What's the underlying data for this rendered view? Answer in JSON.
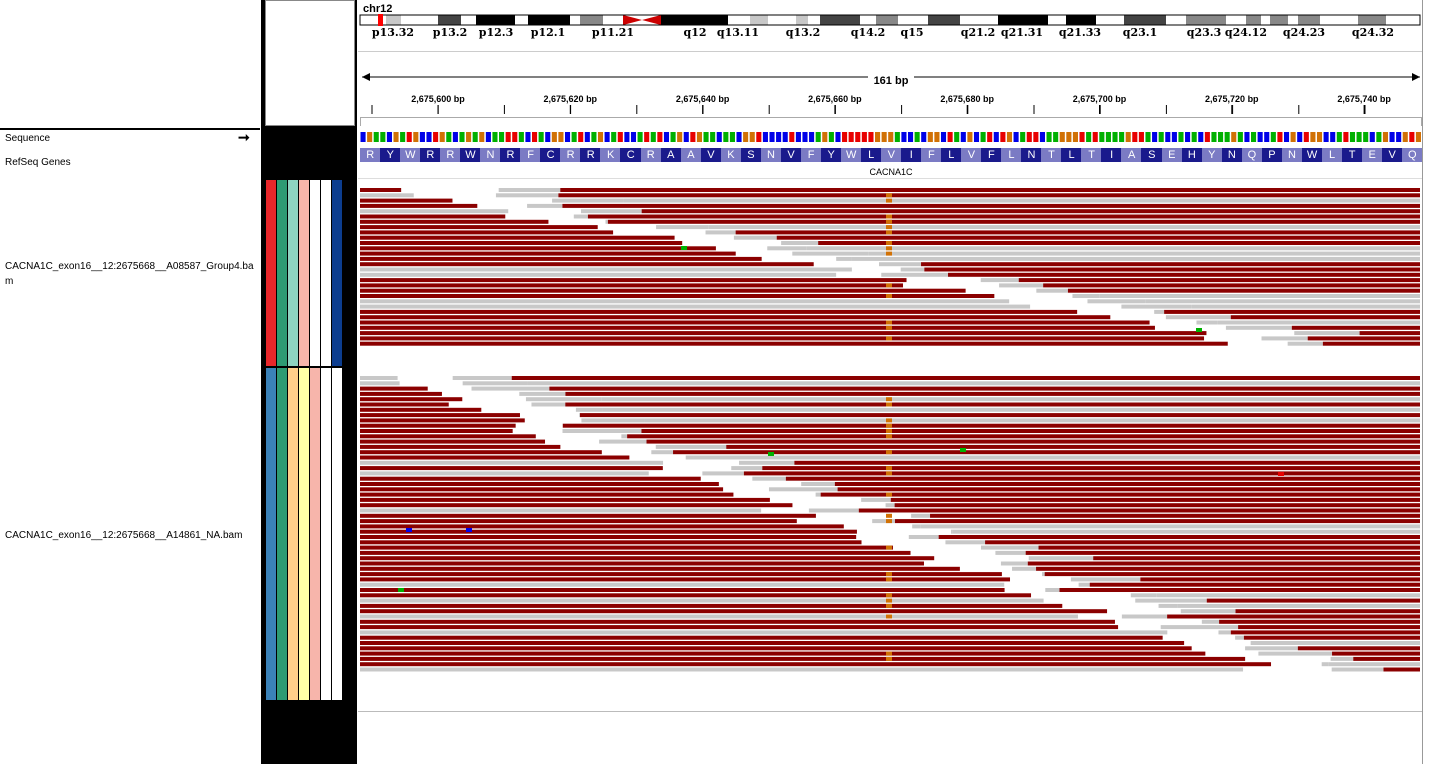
{
  "chromosome": "chr12",
  "ideogram": {
    "bands": [
      "p13.32",
      "p13.2",
      "p12.3",
      "p12.1",
      "p11.21",
      "q12",
      "q13.11",
      "q13.2",
      "q14.2",
      "q15",
      "q21.2",
      "q21.31",
      "q21.33",
      "q23.1",
      "q23.3",
      "q24.12",
      "q24.23",
      "q24.32"
    ]
  },
  "ruler": {
    "span": "161 bp",
    "ticks": [
      "2,675,600 bp",
      "2,675,620 bp",
      "2,675,640 bp",
      "2,675,660 bp",
      "2,675,680 bp",
      "2,675,700 bp",
      "2,675,720 bp",
      "2,675,740 bp"
    ]
  },
  "tracks": {
    "sequence_label": "Sequence",
    "refseq_label": "RefSeq Genes",
    "gene_name": "CACNA1C",
    "amino_acids": [
      "R",
      "Y",
      "W",
      "R",
      "R",
      "W",
      "N",
      "R",
      "F",
      "C",
      "R",
      "R",
      "K",
      "C",
      "R",
      "A",
      "A",
      "V",
      "K",
      "S",
      "N",
      "V",
      "F",
      "Y",
      "W",
      "L",
      "V",
      "I",
      "F",
      "L",
      "V",
      "F",
      "L",
      "N",
      "T",
      "L",
      "T",
      "I",
      "A",
      "S",
      "E",
      "H",
      "Y",
      "N",
      "Q",
      "P",
      "N",
      "W",
      "L",
      "T",
      "E",
      "V",
      "Q"
    ]
  },
  "samples": [
    {
      "name": "CACNA1C_exon16__12:2675668__A08587_Group4.bam",
      "attr_colors": [
        "#e8262a",
        "#2e9b73",
        "#8ed3c0",
        "#f7b5ab",
        "#ffffff",
        "#ffffff",
        "#0c3d8f"
      ]
    },
    {
      "name": "CACNA1C_exon16__12:2675668__A14861_NA.bam",
      "attr_colors": [
        "#3b82b8",
        "#2e9b73",
        "#ffcf8a",
        "#ffffa6",
        "#f7b5ab",
        "#ffffff",
        "#ffffff"
      ]
    }
  ],
  "colors": {
    "read": "#8b0000",
    "read_gap": "#c8c8c8",
    "centromere": "#cc0000",
    "base_A": "#00b000",
    "base_C": "#0000e8",
    "base_G": "#d17105",
    "base_T": "#e80000",
    "aa_dark": "#1a1a8c",
    "aa_light": "#7b7bc4"
  }
}
